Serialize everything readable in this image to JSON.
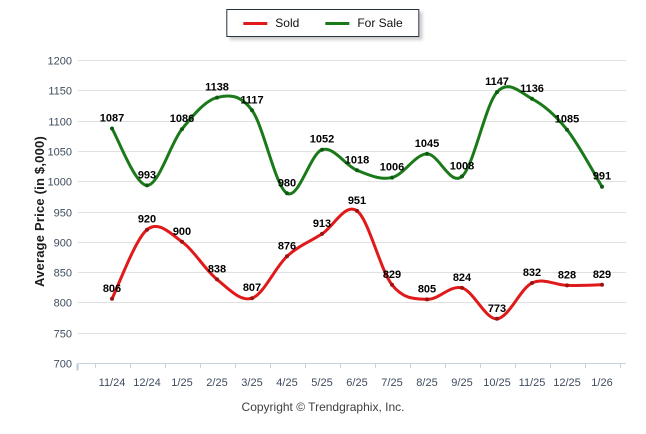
{
  "legend": {
    "items": [
      {
        "label": "Sold",
        "color": "#e01a1a"
      },
      {
        "label": "For Sale",
        "color": "#1a7a1a"
      }
    ]
  },
  "footer": {
    "copyright": "Copyright © Trendgraphix, Inc."
  },
  "chart_data": {
    "type": "line",
    "smooth": true,
    "title": "",
    "xlabel": "",
    "ylabel": "Average Price (in $,000)",
    "ylim": [
      700,
      1200
    ],
    "y_ticks": [
      700,
      750,
      800,
      850,
      900,
      950,
      1000,
      1050,
      1100,
      1150,
      1200
    ],
    "grid": true,
    "legend_position": "top-center",
    "categories": [
      "11/24",
      "12/24",
      "1/25",
      "2/25",
      "3/25",
      "4/25",
      "5/25",
      "6/25",
      "7/25",
      "8/25",
      "9/25",
      "10/25",
      "11/25",
      "12/25",
      "1/26"
    ],
    "series": [
      {
        "name": "Sold",
        "color": "#e01a1a",
        "marker_color": "#9b1313",
        "values": [
          806,
          920,
          900,
          838,
          807,
          876,
          913,
          951,
          829,
          805,
          824,
          773,
          832,
          828,
          829
        ]
      },
      {
        "name": "For Sale",
        "color": "#1a7a1a",
        "marker_color": "#0e5a12",
        "values": [
          1087,
          993,
          1086,
          1138,
          1117,
          980,
          1052,
          1018,
          1006,
          1045,
          1008,
          1147,
          1136,
          1085,
          991
        ]
      }
    ],
    "colors": {
      "gridline": "#e0e0e0",
      "axis": "#c9d3de",
      "y_axis_tick": "#b9c9da",
      "tick_label": "#3e4c5e",
      "point_label": "#000000"
    }
  }
}
